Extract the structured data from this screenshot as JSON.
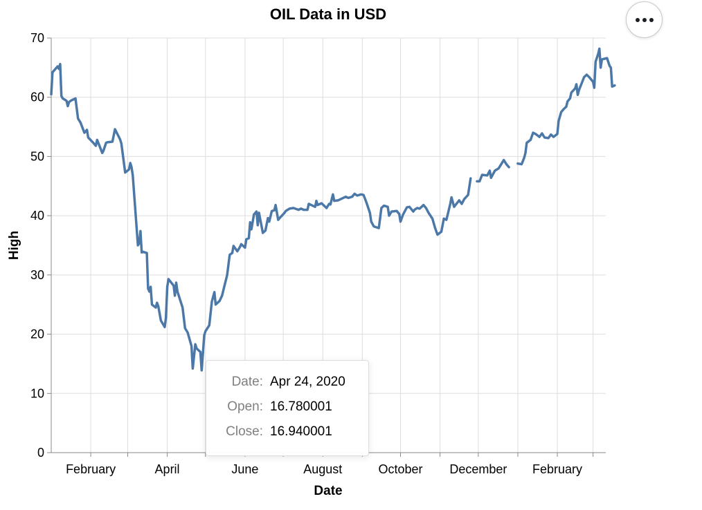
{
  "menu": {
    "icon": "more-horizontal-icon"
  },
  "tooltip": {
    "rows": [
      {
        "key": "Date:",
        "value": "Apr 24, 2020"
      },
      {
        "key": "Open:",
        "value": "16.780001"
      },
      {
        "key": "Close:",
        "value": "16.940001"
      }
    ]
  },
  "chart_data": {
    "type": "line",
    "title": "OIL Data in USD",
    "xlabel": "Date",
    "ylabel": "High",
    "ylim": [
      0,
      70
    ],
    "yticks": [
      0,
      10,
      20,
      30,
      40,
      50,
      60,
      70
    ],
    "xlim": [
      "2020-01-01",
      "2021-03-11"
    ],
    "xticks": [
      {
        "date": "2020-02-01",
        "label": "February"
      },
      {
        "date": "2020-04-01",
        "label": "April"
      },
      {
        "date": "2020-06-01",
        "label": "June"
      },
      {
        "date": "2020-08-01",
        "label": "August"
      },
      {
        "date": "2020-10-01",
        "label": "October"
      },
      {
        "date": "2020-12-01",
        "label": "December"
      },
      {
        "date": "2021-02-01",
        "label": "February"
      }
    ],
    "grid": true,
    "line_color": "#4c78a8",
    "series": [
      {
        "values": [
          [
            "2020-01-01",
            60.5
          ],
          [
            "2020-01-02",
            64.2
          ],
          [
            "2020-01-06",
            65.2
          ],
          [
            "2020-01-07",
            64.8
          ],
          [
            "2020-01-08",
            65.6
          ],
          [
            "2020-01-09",
            60.2
          ],
          [
            "2020-01-10",
            59.8
          ],
          [
            "2020-01-13",
            59.4
          ],
          [
            "2020-01-14",
            58.5
          ],
          [
            "2020-01-15",
            59.2
          ],
          [
            "2020-01-17",
            59.5
          ],
          [
            "2020-01-20",
            59.8
          ],
          [
            "2020-01-22",
            56.4
          ],
          [
            "2020-01-24",
            55.7
          ],
          [
            "2020-01-27",
            54.0
          ],
          [
            "2020-01-29",
            54.5
          ],
          [
            "2020-01-30",
            53.2
          ],
          [
            "2020-02-03",
            52.3
          ],
          [
            "2020-02-05",
            51.8
          ],
          [
            "2020-02-06",
            52.8
          ],
          [
            "2020-02-10",
            50.6
          ],
          [
            "2020-02-11",
            51.0
          ],
          [
            "2020-02-13",
            52.3
          ],
          [
            "2020-02-14",
            52.4
          ],
          [
            "2020-02-18",
            52.5
          ],
          [
            "2020-02-20",
            54.6
          ],
          [
            "2020-02-24",
            52.9
          ],
          [
            "2020-02-25",
            52.2
          ],
          [
            "2020-02-28",
            47.3
          ],
          [
            "2020-03-02",
            47.8
          ],
          [
            "2020-03-03",
            48.9
          ],
          [
            "2020-03-04",
            48.2
          ],
          [
            "2020-03-05",
            46.8
          ],
          [
            "2020-03-09",
            35.0
          ],
          [
            "2020-03-10",
            35.4
          ],
          [
            "2020-03-11",
            37.4
          ],
          [
            "2020-03-12",
            33.8
          ],
          [
            "2020-03-13",
            33.9
          ],
          [
            "2020-03-16",
            33.7
          ],
          [
            "2020-03-17",
            27.7
          ],
          [
            "2020-03-18",
            27.2
          ],
          [
            "2020-03-19",
            28.0
          ],
          [
            "2020-03-20",
            25.0
          ],
          [
            "2020-03-23",
            24.5
          ],
          [
            "2020-03-24",
            25.3
          ],
          [
            "2020-03-25",
            24.7
          ],
          [
            "2020-03-27",
            22.3
          ],
          [
            "2020-03-30",
            21.2
          ],
          [
            "2020-03-31",
            22.8
          ],
          [
            "2020-04-01",
            28.0
          ],
          [
            "2020-04-02",
            29.3
          ],
          [
            "2020-04-06",
            28.2
          ],
          [
            "2020-04-07",
            26.5
          ],
          [
            "2020-04-08",
            28.7
          ],
          [
            "2020-04-09",
            27.2
          ],
          [
            "2020-04-13",
            24.5
          ],
          [
            "2020-04-15",
            21.0
          ],
          [
            "2020-04-17",
            20.3
          ],
          [
            "2020-04-20",
            18.0
          ],
          [
            "2020-04-21",
            14.2
          ],
          [
            "2020-04-23",
            18.3
          ],
          [
            "2020-04-24",
            17.6
          ],
          [
            "2020-04-27",
            17.0
          ],
          [
            "2020-04-28",
            13.9
          ],
          [
            "2020-04-30",
            19.8
          ],
          [
            "2020-05-01",
            20.5
          ],
          [
            "2020-05-04",
            21.5
          ],
          [
            "2020-05-06",
            25.5
          ],
          [
            "2020-05-08",
            27.1
          ],
          [
            "2020-05-09",
            25.0
          ],
          [
            "2020-05-12",
            25.6
          ],
          [
            "2020-05-14",
            26.5
          ],
          [
            "2020-05-18",
            30.0
          ],
          [
            "2020-05-20",
            33.4
          ],
          [
            "2020-05-22",
            33.7
          ],
          [
            "2020-05-23",
            34.9
          ],
          [
            "2020-05-26",
            34.0
          ],
          [
            "2020-05-28",
            34.7
          ],
          [
            "2020-05-29",
            35.2
          ],
          [
            "2020-06-01",
            34.6
          ],
          [
            "2020-06-02",
            36.0
          ],
          [
            "2020-06-04",
            36.2
          ],
          [
            "2020-06-05",
            38.9
          ],
          [
            "2020-06-06",
            37.7
          ],
          [
            "2020-06-08",
            40.2
          ],
          [
            "2020-06-10",
            40.7
          ],
          [
            "2020-06-11",
            38.4
          ],
          [
            "2020-06-12",
            40.5
          ],
          [
            "2020-06-15",
            37.1
          ],
          [
            "2020-06-17",
            37.5
          ],
          [
            "2020-06-19",
            39.6
          ],
          [
            "2020-06-20",
            39.0
          ],
          [
            "2020-06-22",
            40.8
          ],
          [
            "2020-06-24",
            40.9
          ],
          [
            "2020-06-25",
            41.8
          ],
          [
            "2020-06-27",
            39.3
          ],
          [
            "2020-06-29",
            39.8
          ],
          [
            "2020-07-02",
            40.5
          ],
          [
            "2020-07-03",
            40.8
          ],
          [
            "2020-07-06",
            41.2
          ],
          [
            "2020-07-09",
            41.3
          ],
          [
            "2020-07-13",
            41.0
          ],
          [
            "2020-07-15",
            41.2
          ],
          [
            "2020-07-17",
            41.0
          ],
          [
            "2020-07-20",
            41.0
          ],
          [
            "2020-07-21",
            42.0
          ],
          [
            "2020-07-24",
            41.7
          ],
          [
            "2020-07-26",
            41.5
          ],
          [
            "2020-07-27",
            42.5
          ],
          [
            "2020-07-28",
            41.8
          ],
          [
            "2020-07-30",
            42.0
          ],
          [
            "2020-07-31",
            42.1
          ],
          [
            "2020-08-04",
            41.3
          ],
          [
            "2020-08-06",
            42.0
          ],
          [
            "2020-08-07",
            41.9
          ],
          [
            "2020-08-09",
            43.6
          ],
          [
            "2020-08-10",
            42.5
          ],
          [
            "2020-08-13",
            42.6
          ],
          [
            "2020-08-17",
            43.0
          ],
          [
            "2020-08-19",
            43.2
          ],
          [
            "2020-08-21",
            43.0
          ],
          [
            "2020-08-24",
            43.2
          ],
          [
            "2020-08-26",
            43.7
          ],
          [
            "2020-08-28",
            43.4
          ],
          [
            "2020-08-31",
            43.6
          ],
          [
            "2020-09-02",
            43.5
          ],
          [
            "2020-09-04",
            42.4
          ],
          [
            "2020-09-07",
            40.5
          ],
          [
            "2020-09-08",
            39.0
          ],
          [
            "2020-09-10",
            38.2
          ],
          [
            "2020-09-14",
            37.9
          ],
          [
            "2020-09-16",
            41.3
          ],
          [
            "2020-09-18",
            41.7
          ],
          [
            "2020-09-21",
            41.5
          ],
          [
            "2020-09-22",
            40.0
          ],
          [
            "2020-09-24",
            40.7
          ],
          [
            "2020-09-28",
            40.8
          ],
          [
            "2020-09-30",
            40.3
          ],
          [
            "2020-10-01",
            39.0
          ],
          [
            "2020-10-03",
            40.2
          ],
          [
            "2020-10-06",
            41.4
          ],
          [
            "2020-10-08",
            41.5
          ],
          [
            "2020-10-11",
            40.7
          ],
          [
            "2020-10-12",
            41.0
          ],
          [
            "2020-10-14",
            41.3
          ],
          [
            "2020-10-16",
            41.2
          ],
          [
            "2020-10-19",
            41.8
          ],
          [
            "2020-10-21",
            41.3
          ],
          [
            "2020-10-23",
            40.5
          ],
          [
            "2020-10-26",
            39.5
          ],
          [
            "2020-10-28",
            38.0
          ],
          [
            "2020-10-30",
            36.8
          ],
          [
            "2020-11-02",
            37.3
          ],
          [
            "2020-11-04",
            39.5
          ],
          [
            "2020-11-06",
            39.3
          ],
          [
            "2020-11-09",
            42.0
          ],
          [
            "2020-11-10",
            43.1
          ],
          [
            "2020-11-12",
            41.5
          ],
          [
            "2020-11-16",
            42.6
          ],
          [
            "2020-11-18",
            42.0
          ],
          [
            "2020-11-20",
            42.8
          ],
          [
            "2020-11-23",
            43.5
          ],
          [
            "2020-11-25",
            46.3
          ],
          null,
          [
            "2020-11-30",
            45.8
          ],
          [
            "2020-12-02",
            45.8
          ],
          [
            "2020-12-04",
            46.9
          ],
          [
            "2020-12-08",
            46.8
          ],
          [
            "2020-12-10",
            47.6
          ],
          [
            "2020-12-11",
            46.4
          ],
          [
            "2020-12-14",
            47.6
          ],
          [
            "2020-12-17",
            48.0
          ],
          [
            "2020-12-21",
            49.4
          ],
          [
            "2020-12-23",
            48.7
          ],
          [
            "2020-12-25",
            48.2
          ],
          null,
          [
            "2021-01-01",
            48.8
          ],
          [
            "2021-01-04",
            48.7
          ],
          [
            "2021-01-06",
            49.8
          ],
          [
            "2021-01-07",
            50.6
          ],
          [
            "2021-01-08",
            52.3
          ],
          [
            "2021-01-11",
            52.8
          ],
          [
            "2021-01-13",
            54.0
          ],
          [
            "2021-01-15",
            53.8
          ],
          [
            "2021-01-18",
            53.3
          ],
          [
            "2021-01-20",
            53.9
          ],
          [
            "2021-01-22",
            53.2
          ],
          [
            "2021-01-25",
            53.1
          ],
          [
            "2021-01-27",
            53.7
          ],
          [
            "2021-01-29",
            53.3
          ],
          [
            "2021-02-01",
            53.8
          ],
          [
            "2021-02-02",
            56.0
          ],
          [
            "2021-02-04",
            57.5
          ],
          [
            "2021-02-06",
            58.0
          ],
          [
            "2021-02-08",
            58.4
          ],
          [
            "2021-02-09",
            59.3
          ],
          [
            "2021-02-11",
            59.8
          ],
          [
            "2021-02-12",
            60.8
          ],
          [
            "2021-02-15",
            61.5
          ],
          [
            "2021-02-16",
            62.2
          ],
          [
            "2021-02-17",
            60.4
          ],
          [
            "2021-02-18",
            61.2
          ],
          [
            "2021-02-22",
            63.4
          ],
          [
            "2021-02-24",
            63.8
          ],
          [
            "2021-02-26",
            63.4
          ],
          [
            "2021-03-01",
            62.6
          ],
          [
            "2021-03-02",
            61.6
          ],
          [
            "2021-03-03",
            66.0
          ],
          [
            "2021-03-05",
            67.3
          ],
          [
            "2021-03-06",
            68.2
          ],
          [
            "2021-03-07",
            65.0
          ],
          [
            "2021-03-08",
            66.4
          ],
          [
            "2021-03-10",
            66.5
          ],
          [
            "2021-03-12",
            66.6
          ],
          [
            "2021-03-14",
            65.3
          ],
          [
            "2021-03-15",
            65.0
          ],
          [
            "2021-03-16",
            61.8
          ],
          [
            "2021-03-18",
            62.0
          ]
        ]
      }
    ]
  }
}
